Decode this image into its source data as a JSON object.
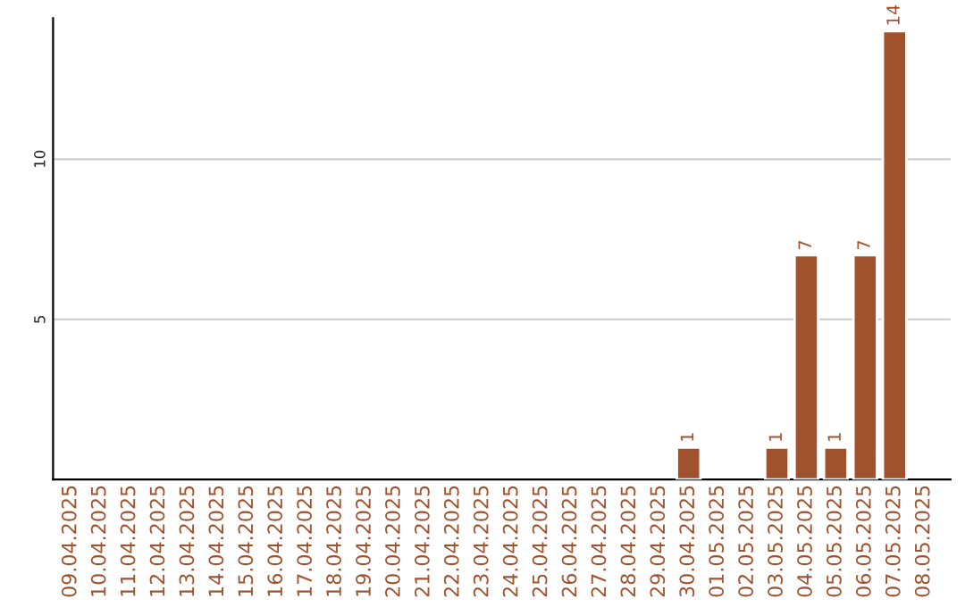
{
  "chart_data": {
    "type": "bar",
    "categories": [
      "09.04.2025",
      "10.04.2025",
      "11.04.2025",
      "12.04.2025",
      "13.04.2025",
      "14.04.2025",
      "15.04.2025",
      "16.04.2025",
      "17.04.2025",
      "18.04.2025",
      "19.04.2025",
      "20.04.2025",
      "21.04.2025",
      "22.04.2025",
      "23.04.2025",
      "24.04.2025",
      "25.04.2025",
      "26.04.2025",
      "27.04.2025",
      "28.04.2025",
      "29.04.2025",
      "30.04.2025",
      "01.05.2025",
      "02.05.2025",
      "03.05.2025",
      "04.05.2025",
      "05.05.2025",
      "06.05.2025",
      "07.05.2025",
      "08.05.2025"
    ],
    "values": [
      0,
      0,
      0,
      0,
      0,
      0,
      0,
      0,
      0,
      0,
      0,
      0,
      0,
      0,
      0,
      0,
      0,
      0,
      0,
      0,
      0,
      1,
      0,
      0,
      1,
      7,
      1,
      7,
      14,
      0
    ],
    "value_labels": [
      null,
      null,
      null,
      null,
      null,
      null,
      null,
      null,
      null,
      null,
      null,
      null,
      null,
      null,
      null,
      null,
      null,
      null,
      null,
      null,
      null,
      "1",
      null,
      null,
      "1",
      "7",
      "1",
      "7",
      "14",
      null
    ],
    "color": "#a0522d",
    "ylim": [
      0,
      14.4
    ],
    "yticks": [
      5,
      10
    ],
    "grid": "y"
  }
}
